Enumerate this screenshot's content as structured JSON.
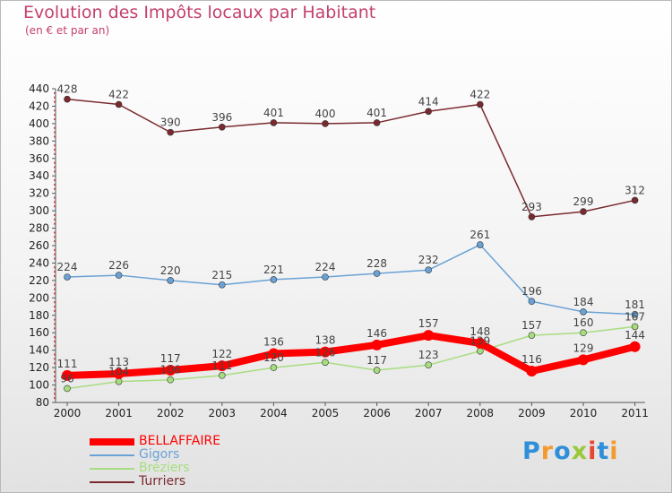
{
  "chart_data": {
    "type": "line",
    "title": "Evolution des Impôts locaux par Habitant",
    "subtitle": "(en € et par an)",
    "categories": [
      "2000",
      "2001",
      "2002",
      "2003",
      "2004",
      "2005",
      "2006",
      "2007",
      "2008",
      "2009",
      "2010",
      "2011"
    ],
    "ylim": [
      80,
      440
    ],
    "yticks": [
      80,
      100,
      120,
      140,
      160,
      180,
      200,
      220,
      240,
      260,
      280,
      300,
      320,
      340,
      360,
      380,
      400,
      420,
      440
    ],
    "grid": false,
    "legend_position": "bottom-left",
    "series": [
      {
        "name": "BELLAFFAIRE",
        "color": "#ff0000",
        "values": [
          111,
          113,
          117,
          122,
          136,
          138,
          146,
          157,
          148,
          116,
          129,
          144
        ],
        "labels": [
          "111",
          "113",
          "117",
          "122",
          "136",
          "138",
          "146",
          "157",
          "148",
          "116",
          "129",
          "144"
        ]
      },
      {
        "name": "Gigors",
        "color": "#6aa2d6",
        "values": [
          224,
          226,
          220,
          215,
          221,
          224,
          228,
          232,
          261,
          196,
          184,
          181
        ],
        "labels": [
          "224",
          "226",
          "220",
          "215",
          "221",
          "224",
          "228",
          "232",
          "261",
          "196",
          "184",
          "181"
        ]
      },
      {
        "name": "Bréziers",
        "color": "#a7dd7f",
        "values": [
          96,
          104,
          106,
          111,
          120,
          126,
          117,
          123,
          139,
          157,
          160,
          167
        ],
        "labels": [
          "96",
          "104",
          "106",
          "111",
          "120",
          "126",
          "117",
          "123",
          "139",
          "157",
          "160",
          "167"
        ]
      },
      {
        "name": "Turriers",
        "color": "#7a2a2f",
        "values": [
          428,
          422,
          390,
          396,
          401,
          400,
          401,
          414,
          422,
          293,
          299,
          312
        ],
        "labels": [
          "428",
          "422",
          "390",
          "396",
          "401",
          "400",
          "401",
          "414",
          "422",
          "293",
          "299",
          "312"
        ]
      }
    ]
  },
  "logo": {
    "text": "Proxiti",
    "colors": [
      "#2f8fd8",
      "#f39a2e",
      "#2f8fd8",
      "#9ac83c",
      "#e8462f",
      "#2f8fd8",
      "#f39a2e"
    ]
  }
}
